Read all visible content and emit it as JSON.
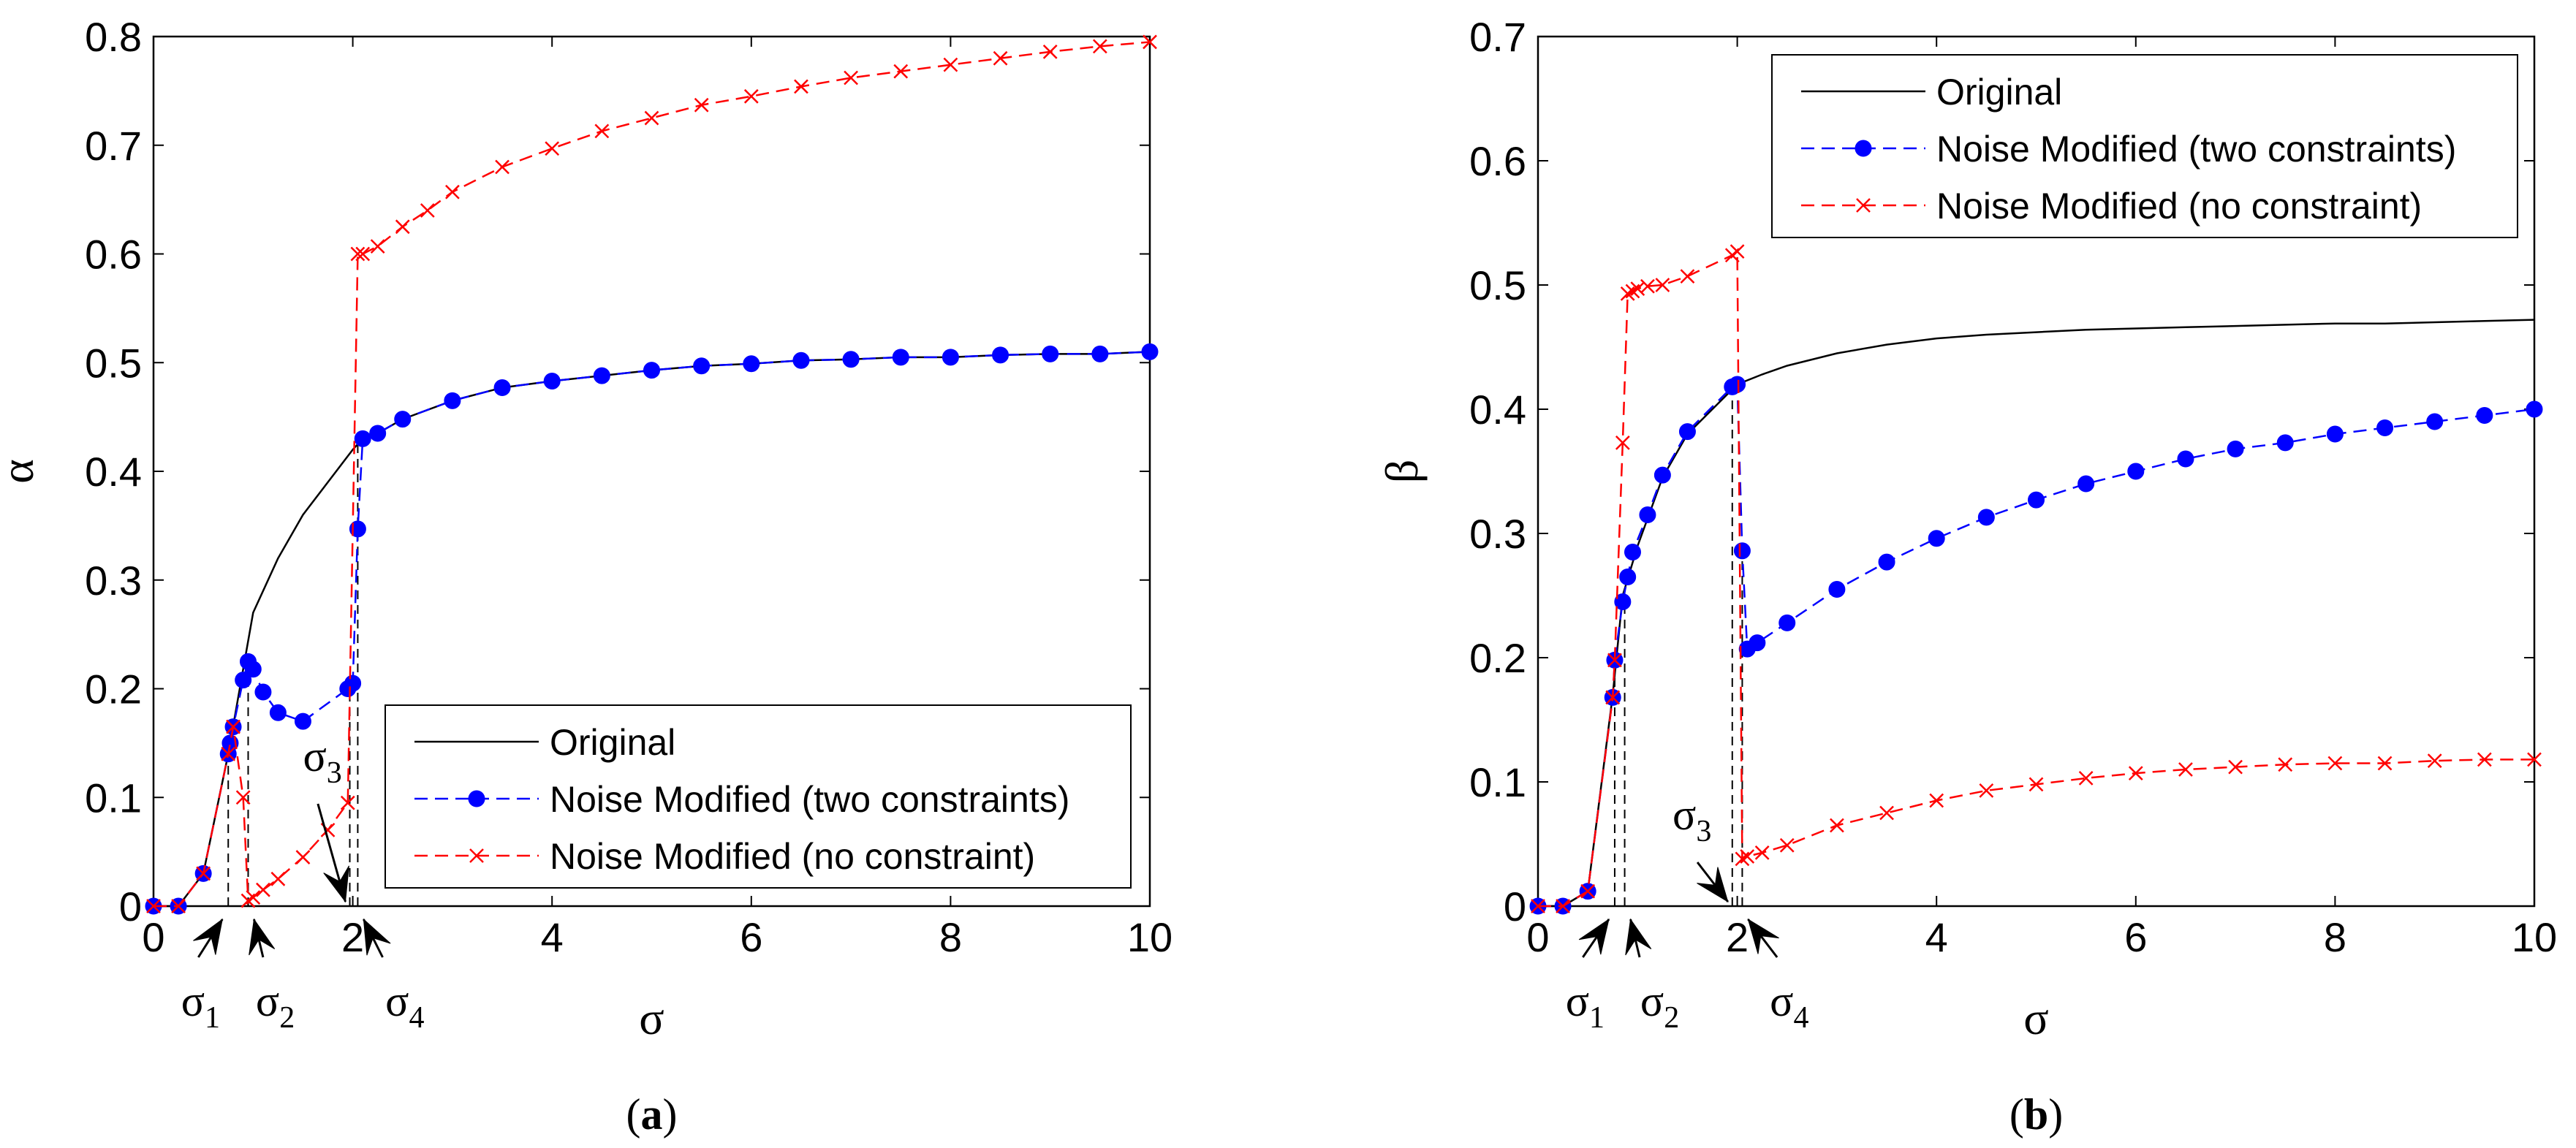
{
  "chart_data": [
    {
      "id": "a",
      "type": "line",
      "caption_open": "(",
      "caption_letter": "a",
      "caption_close": ")",
      "xlabel": "σ",
      "ylabel": "α",
      "xlim": [
        0,
        10
      ],
      "ylim": [
        0,
        0.8
      ],
      "xticks": [
        0,
        2,
        4,
        6,
        8,
        10
      ],
      "yticks": [
        0,
        0.1,
        0.2,
        0.3,
        0.4,
        0.5,
        0.6,
        0.7,
        0.8
      ],
      "xtick_labels": [
        "0",
        "2",
        "4",
        "6",
        "8",
        "10"
      ],
      "ytick_labels": [
        "0",
        "0.1",
        "0.2",
        "0.3",
        "0.4",
        "0.5",
        "0.6",
        "0.7",
        "0.8"
      ],
      "legend_position": "bottom-right",
      "series": [
        {
          "name": "Original",
          "color": "#000000",
          "dash": "solid",
          "marker": "none",
          "x": [
            0,
            0.25,
            0.5,
            0.75,
            1.0,
            1.25,
            1.5,
            1.75,
            2.0,
            2.05,
            2.1,
            2.25,
            2.5,
            3.0,
            3.5,
            4.0,
            4.5,
            5.0,
            5.5,
            6.0,
            6.5,
            7.0,
            7.5,
            8.0,
            8.5,
            9.0,
            9.5,
            10.0
          ],
          "y": [
            0,
            0.0,
            0.03,
            0.14,
            0.27,
            0.32,
            0.36,
            0.39,
            0.42,
            0.425,
            0.43,
            0.435,
            0.448,
            0.465,
            0.477,
            0.483,
            0.488,
            0.493,
            0.497,
            0.499,
            0.502,
            0.503,
            0.505,
            0.505,
            0.507,
            0.508,
            0.508,
            0.51
          ]
        },
        {
          "name": "Noise Modified (two constraints)",
          "color": "#0000ff",
          "dash": "dashed",
          "marker": "dot",
          "x": [
            0,
            0.25,
            0.5,
            0.75,
            0.77,
            0.8,
            0.9,
            0.95,
            1.0,
            1.1,
            1.25,
            1.5,
            1.95,
            2.0,
            2.05,
            2.1,
            2.25,
            2.5,
            3.0,
            3.5,
            4.0,
            4.5,
            5.0,
            5.5,
            6.0,
            6.5,
            7.0,
            7.5,
            8.0,
            8.5,
            9.0,
            9.5,
            10.0
          ],
          "y": [
            0,
            0,
            0.03,
            0.14,
            0.15,
            0.165,
            0.208,
            0.225,
            0.218,
            0.197,
            0.178,
            0.17,
            0.2,
            0.205,
            0.347,
            0.43,
            0.435,
            0.448,
            0.465,
            0.477,
            0.483,
            0.488,
            0.493,
            0.497,
            0.499,
            0.502,
            0.503,
            0.505,
            0.505,
            0.507,
            0.508,
            0.508,
            0.51
          ]
        },
        {
          "name": "Noise Modified (no constraint)",
          "color": "#ff0000",
          "dash": "dashed",
          "marker": "x",
          "x": [
            0,
            0.25,
            0.5,
            0.75,
            0.8,
            0.9,
            0.95,
            1.0,
            1.1,
            1.25,
            1.5,
            1.75,
            1.95,
            2.05,
            2.1,
            2.25,
            2.5,
            2.75,
            3.0,
            3.5,
            4.0,
            4.5,
            5.0,
            5.5,
            6.0,
            6.5,
            7.0,
            7.5,
            8.0,
            8.5,
            9.0,
            9.5,
            10.0
          ],
          "y": [
            0,
            0,
            0.03,
            0.14,
            0.165,
            0.1,
            0.005,
            0.008,
            0.015,
            0.025,
            0.045,
            0.07,
            0.095,
            0.6,
            0.6,
            0.607,
            0.625,
            0.64,
            0.657,
            0.68,
            0.697,
            0.713,
            0.725,
            0.737,
            0.745,
            0.754,
            0.762,
            0.768,
            0.774,
            0.78,
            0.786,
            0.791,
            0.795
          ]
        }
      ],
      "vlines": [
        {
          "x": 0.75,
          "y": 0.14,
          "color": "#000000"
        },
        {
          "x": 0.95,
          "y": 0.225,
          "color": "#000000"
        },
        {
          "x": 1.97,
          "y": 0.2,
          "color": "#000000"
        },
        {
          "x": 2.05,
          "y": 0.43,
          "color": "#000000"
        }
      ],
      "annotations": [
        {
          "text": "σ",
          "sub": "1",
          "x": 0.75,
          "arrow_from": [
            0.45,
            23
          ],
          "text_pos": [
            0.35,
            58
          ],
          "text_dx": 0
        },
        {
          "text": "σ",
          "sub": "2",
          "x": 0.95,
          "arrow_from": [
            1.1,
            23
          ],
          "text_pos": [
            1.1,
            58
          ],
          "text_dx": 0
        },
        {
          "text": "σ",
          "sub": "3",
          "x": 1.97,
          "arrow_from": [
            1.65,
            140
          ],
          "text_pos": [
            1.5,
            60
          ],
          "text_dx": 0,
          "above": true
        },
        {
          "text": "σ",
          "sub": "4",
          "x": 2.05,
          "arrow_from": [
            2.3,
            23
          ],
          "text_pos": [
            2.4,
            58
          ],
          "text_dx": 0
        }
      ]
    },
    {
      "id": "b",
      "type": "line",
      "caption_open": "(",
      "caption_letter": "b",
      "caption_close": ")",
      "xlabel": "σ",
      "ylabel": "β",
      "xlim": [
        0,
        10
      ],
      "ylim": [
        0,
        0.7
      ],
      "xticks": [
        0,
        2,
        4,
        6,
        8,
        10
      ],
      "yticks": [
        0,
        0.1,
        0.2,
        0.3,
        0.4,
        0.5,
        0.6,
        0.7
      ],
      "xtick_labels": [
        "0",
        "2",
        "4",
        "6",
        "8",
        "10"
      ],
      "ytick_labels": [
        "0",
        "0.1",
        "0.2",
        "0.3",
        "0.4",
        "0.5",
        "0.6",
        "0.7"
      ],
      "legend_position": "top-right",
      "series": [
        {
          "name": "Original",
          "color": "#000000",
          "dash": "solid",
          "marker": "none",
          "x": [
            0,
            0.25,
            0.5,
            0.75,
            0.85,
            1.0,
            1.25,
            1.5,
            1.75,
            2.0,
            2.25,
            2.5,
            3.0,
            3.5,
            4.0,
            4.5,
            5.0,
            5.5,
            6.0,
            6.5,
            7.0,
            7.5,
            8.0,
            8.5,
            9.0,
            9.5,
            10.0
          ],
          "y": [
            0,
            0,
            0.012,
            0.17,
            0.25,
            0.29,
            0.345,
            0.38,
            0.4,
            0.42,
            0.428,
            0.435,
            0.445,
            0.452,
            0.457,
            0.46,
            0.462,
            0.464,
            0.465,
            0.466,
            0.467,
            0.468,
            0.469,
            0.469,
            0.47,
            0.471,
            0.472
          ]
        },
        {
          "name": "Noise Modified (two constraints)",
          "color": "#0000ff",
          "dash": "dashed",
          "marker": "dot",
          "x": [
            0,
            0.25,
            0.5,
            0.75,
            0.77,
            0.85,
            0.9,
            0.95,
            1.1,
            1.25,
            1.5,
            1.95,
            2.0,
            2.05,
            2.1,
            2.2,
            2.5,
            3.0,
            3.5,
            4.0,
            4.5,
            5.0,
            5.5,
            6.0,
            6.5,
            7.0,
            7.5,
            8.0,
            8.5,
            9.0,
            9.5,
            10.0
          ],
          "y": [
            0,
            0,
            0.012,
            0.168,
            0.198,
            0.245,
            0.265,
            0.285,
            0.315,
            0.347,
            0.382,
            0.418,
            0.42,
            0.286,
            0.207,
            0.212,
            0.228,
            0.255,
            0.277,
            0.296,
            0.313,
            0.327,
            0.34,
            0.35,
            0.36,
            0.368,
            0.373,
            0.38,
            0.385,
            0.39,
            0.395,
            0.4
          ]
        },
        {
          "name": "Noise Modified (no constraint)",
          "color": "#ff0000",
          "dash": "dashed",
          "marker": "x",
          "x": [
            0,
            0.25,
            0.5,
            0.75,
            0.77,
            0.85,
            0.9,
            0.95,
            1.0,
            1.1,
            1.25,
            1.5,
            1.95,
            2.0,
            2.05,
            2.1,
            2.25,
            2.5,
            3.0,
            3.5,
            4.0,
            4.5,
            5.0,
            5.5,
            6.0,
            6.5,
            7.0,
            7.5,
            8.0,
            8.5,
            9.0,
            9.5,
            10.0
          ],
          "y": [
            0,
            0,
            0.012,
            0.168,
            0.198,
            0.373,
            0.493,
            0.495,
            0.497,
            0.499,
            0.5,
            0.507,
            0.524,
            0.527,
            0.038,
            0.04,
            0.043,
            0.049,
            0.065,
            0.075,
            0.085,
            0.093,
            0.098,
            0.103,
            0.107,
            0.11,
            0.112,
            0.114,
            0.115,
            0.115,
            0.117,
            0.118,
            0.118
          ]
        }
      ],
      "vlines": [
        {
          "x": 0.77,
          "y": 0.198,
          "color": "#000000"
        },
        {
          "x": 0.87,
          "y": 0.26,
          "color": "#000000"
        },
        {
          "x": 1.95,
          "y": 0.418,
          "color": "#000000"
        },
        {
          "x": 2.05,
          "y": 0.286,
          "color": "#000000"
        }
      ],
      "annotations": [
        {
          "text": "σ",
          "sub": "1",
          "x": 0.77,
          "arrow_from": [
            0.45,
            23
          ],
          "text_pos": [
            0.35,
            58
          ],
          "text_dx": 0
        },
        {
          "text": "σ",
          "sub": "2",
          "x": 0.87,
          "arrow_from": [
            1.02,
            23
          ],
          "text_pos": [
            1.1,
            58
          ],
          "text_dx": 0
        },
        {
          "text": "σ",
          "sub": "3",
          "x": 1.95,
          "arrow_from": [
            1.6,
            60
          ],
          "text_pos": [
            1.35,
            80
          ],
          "text_dx": 0,
          "above": true
        },
        {
          "text": "σ",
          "sub": "4",
          "x": 2.05,
          "arrow_from": [
            2.4,
            23
          ],
          "text_pos": [
            2.4,
            58
          ],
          "text_dx": 0
        }
      ]
    }
  ]
}
